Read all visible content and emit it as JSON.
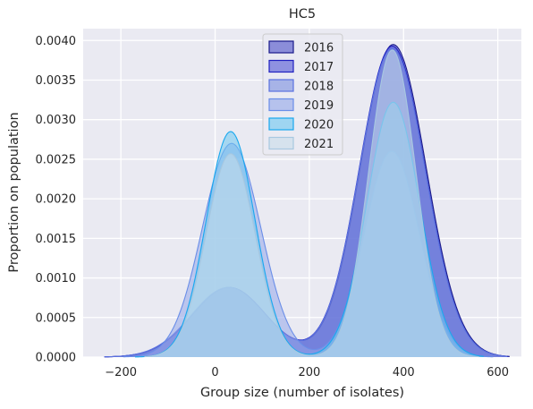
{
  "chart_data": {
    "type": "area",
    "title": "HC5",
    "xlabel": "Group size (number of isolates)",
    "ylabel": "Proportion on population",
    "xlim": [
      -280,
      650
    ],
    "ylim": [
      0,
      0.00415
    ],
    "xticks": [
      -200,
      0,
      200,
      400,
      600
    ],
    "yticks": [
      0.0,
      0.0005,
      0.001,
      0.0015,
      0.002,
      0.0025,
      0.003,
      0.0035,
      0.004
    ],
    "ytick_labels": [
      "0.0000",
      "0.0005",
      "0.0010",
      "0.0015",
      "0.0020",
      "0.0025",
      "0.0030",
      "0.0035",
      "0.0040"
    ],
    "grid": true,
    "legend_position": "top-center",
    "series": [
      {
        "name": "2016",
        "fill": "#4b4fc8",
        "edge": "#1a1a8a",
        "peaks": [
          {
            "mu": 30,
            "sigma": 78,
            "h": 0.00088
          },
          {
            "mu": 378,
            "sigma": 70,
            "h": 0.00395
          }
        ],
        "range": [
          -235,
          625
        ]
      },
      {
        "name": "2017",
        "fill": "#5055d6",
        "edge": "#2020c0",
        "peaks": [
          {
            "mu": 30,
            "sigma": 78,
            "h": 0.00088
          },
          {
            "mu": 376,
            "sigma": 70,
            "h": 0.00393
          }
        ],
        "range": [
          -235,
          622
        ]
      },
      {
        "name": "2018",
        "fill": "#7a8ee0",
        "edge": "#5a72e0",
        "peaks": [
          {
            "mu": 28,
            "sigma": 78,
            "h": 0.00088
          },
          {
            "mu": 376,
            "sigma": 70,
            "h": 0.0039
          }
        ],
        "range": [
          -235,
          620
        ]
      },
      {
        "name": "2019",
        "fill": "#93a6ea",
        "edge": "#6a8ee8",
        "peaks": [
          {
            "mu": 35,
            "sigma": 62,
            "h": 0.0027
          },
          {
            "mu": 375,
            "sigma": 58,
            "h": 0.0026
          }
        ],
        "range": [
          -195,
          590
        ]
      },
      {
        "name": "2020",
        "fill": "#6cc6f0",
        "edge": "#1aa8ee",
        "peaks": [
          {
            "mu": 33,
            "sigma": 52,
            "h": 0.00285
          },
          {
            "mu": 378,
            "sigma": 56,
            "h": 0.00322
          }
        ],
        "range": [
          -170,
          570
        ]
      },
      {
        "name": "2021",
        "fill": "#c8dcea",
        "edge": "#a8c8e0",
        "peaks": [
          {
            "mu": 33,
            "sigma": 52,
            "h": 0.00257
          },
          {
            "mu": 376,
            "sigma": 50,
            "h": 0.00388
          }
        ],
        "range": [
          -150,
          560
        ]
      }
    ]
  }
}
